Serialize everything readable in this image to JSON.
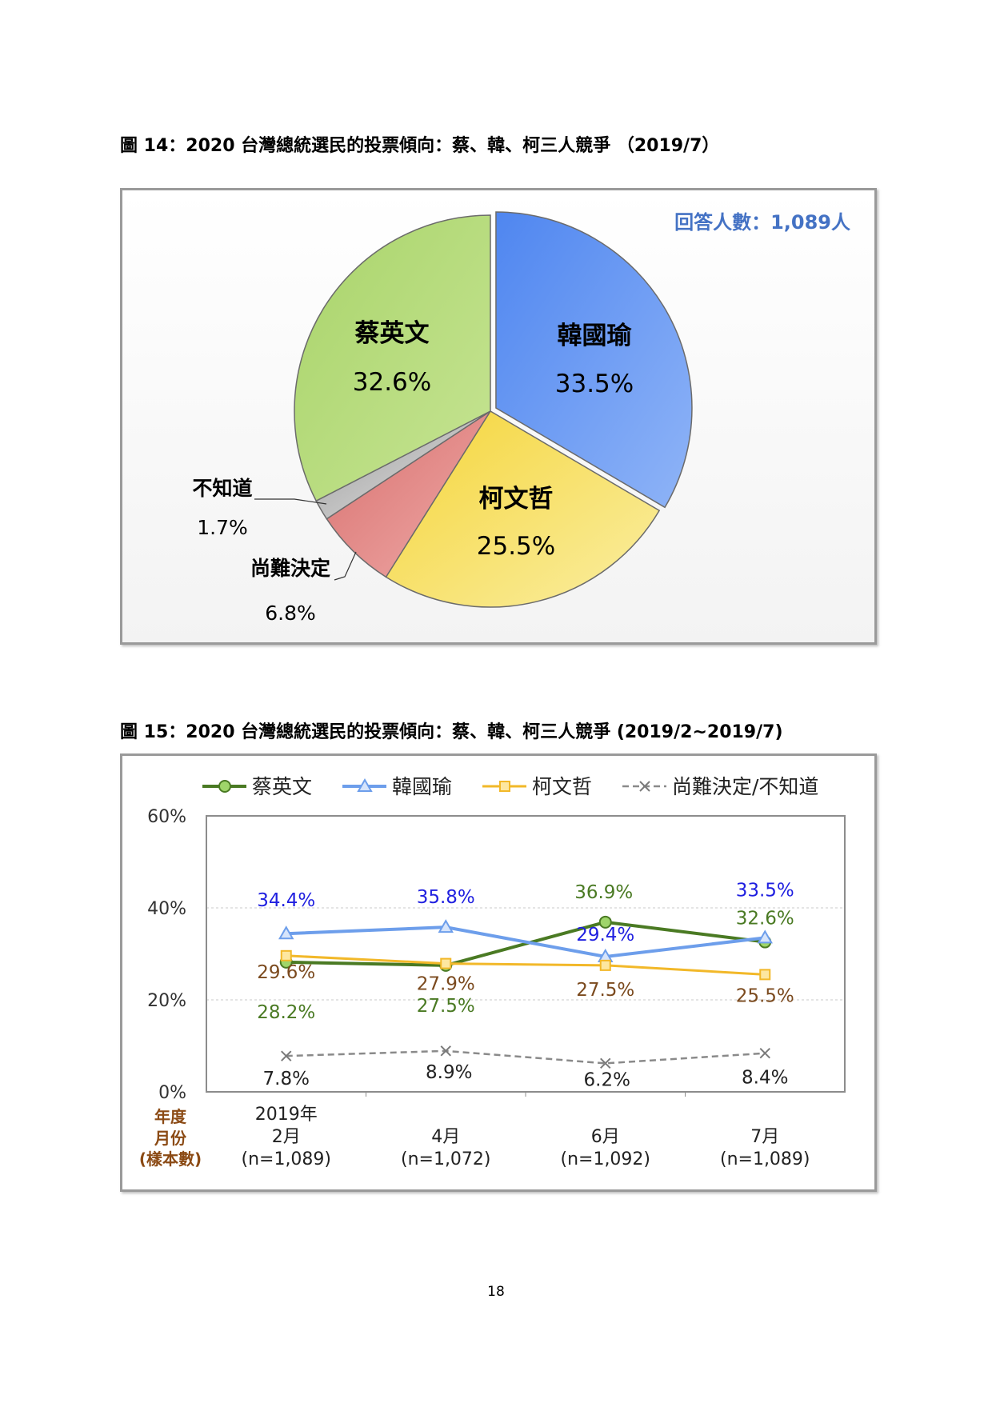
{
  "figure14": {
    "title": "圖 14：2020 台灣總統選民的投票傾向：蔡、韓、柯三人競爭 （2019/7）",
    "sample_note": "回答人數：1,089人"
  },
  "figure15": {
    "title": "圖 15：2020 台灣總統選民的投票傾向：蔡、韓、柯三人競爭 (2019/2~2019/7)"
  },
  "page_number": "18",
  "colors": {
    "tsai": "#4a7a23",
    "han": "#6d9eeb",
    "ko": "#f2b829",
    "undecided": "#e58c8a",
    "unknown": "#c8c8c8",
    "han_label": "#1f1fe0",
    "ko_label": "#7b4a1e",
    "axis_label": "#8b4a14"
  },
  "chart_data": [
    {
      "type": "pie",
      "title": "",
      "slices": [
        {
          "label": "韓國瑜",
          "value": 33.5,
          "display": "33.5%"
        },
        {
          "label": "柯文哲",
          "value": 25.5,
          "display": "25.5%"
        },
        {
          "label": "尚難決定",
          "value": 6.8,
          "display": "6.8%"
        },
        {
          "label": "不知道",
          "value": 1.7,
          "display": "1.7%"
        },
        {
          "label": "蔡英文",
          "value": 32.6,
          "display": "32.6%"
        }
      ]
    },
    {
      "type": "line",
      "title": "",
      "ylim": [
        0,
        60
      ],
      "yticks": [
        "0%",
        "20%",
        "40%",
        "60%"
      ],
      "ytick_values": [
        0,
        20,
        40,
        60
      ],
      "axis_row_labels": [
        "年度",
        "月份",
        "(樣本數)"
      ],
      "categories": [
        {
          "year": "2019年",
          "month": "2月",
          "n": "(n=1,089)"
        },
        {
          "year": "",
          "month": "4月",
          "n": "(n=1,072)"
        },
        {
          "year": "",
          "month": "6月",
          "n": "(n=1,092)"
        },
        {
          "year": "",
          "month": "7月",
          "n": "(n=1,089)"
        }
      ],
      "series": [
        {
          "name": "蔡英文",
          "values": [
            28.2,
            27.5,
            36.9,
            32.6
          ],
          "labels": [
            "28.2%",
            "27.5%",
            "36.9%",
            "32.6%"
          ]
        },
        {
          "name": "韓國瑜",
          "values": [
            34.4,
            35.8,
            29.4,
            33.5
          ],
          "labels": [
            "34.4%",
            "35.8%",
            "29.4%",
            "33.5%"
          ]
        },
        {
          "name": "柯文哲",
          "values": [
            29.6,
            27.9,
            27.5,
            25.5
          ],
          "labels": [
            "29.6%",
            "27.9%",
            "27.5%",
            "25.5%"
          ]
        },
        {
          "name": "尚難決定/不知道",
          "values": [
            7.8,
            8.9,
            6.2,
            8.4
          ],
          "labels": [
            "7.8%",
            "8.9%",
            "6.2%",
            "8.4%"
          ]
        }
      ],
      "grid": true,
      "legend": "top"
    }
  ]
}
